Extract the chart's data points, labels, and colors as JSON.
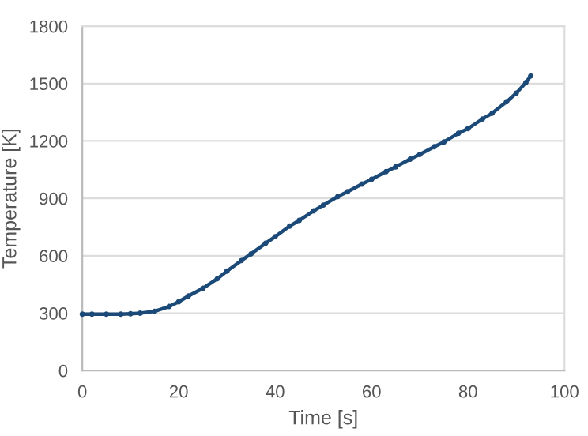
{
  "chart_data": {
    "type": "line",
    "xlabel": "Time [s]",
    "ylabel": "Temperature [K]",
    "x": [
      0,
      2,
      5,
      8,
      10,
      12,
      15,
      18,
      20,
      22,
      25,
      28,
      30,
      33,
      35,
      38,
      40,
      43,
      45,
      48,
      50,
      53,
      55,
      58,
      60,
      63,
      65,
      68,
      70,
      73,
      75,
      78,
      80,
      83,
      85,
      88,
      90,
      92,
      93
    ],
    "series": [
      {
        "color": "#1c4a78",
        "values": [
          295,
          295,
          295,
          295,
          297,
          300,
          310,
          335,
          360,
          390,
          430,
          480,
          520,
          575,
          610,
          665,
          700,
          755,
          785,
          835,
          865,
          910,
          935,
          975,
          1000,
          1040,
          1065,
          1105,
          1130,
          1170,
          1195,
          1240,
          1265,
          1315,
          1345,
          1405,
          1450,
          1505,
          1540
        ]
      }
    ],
    "xlim": [
      0,
      100
    ],
    "ylim": [
      0,
      1800
    ],
    "xticks": [
      0,
      20,
      40,
      60,
      80,
      100
    ],
    "yticks": [
      0,
      300,
      600,
      900,
      1200,
      1500,
      1800
    ],
    "grid": "y",
    "marker": "circle",
    "line_style": "solid"
  }
}
